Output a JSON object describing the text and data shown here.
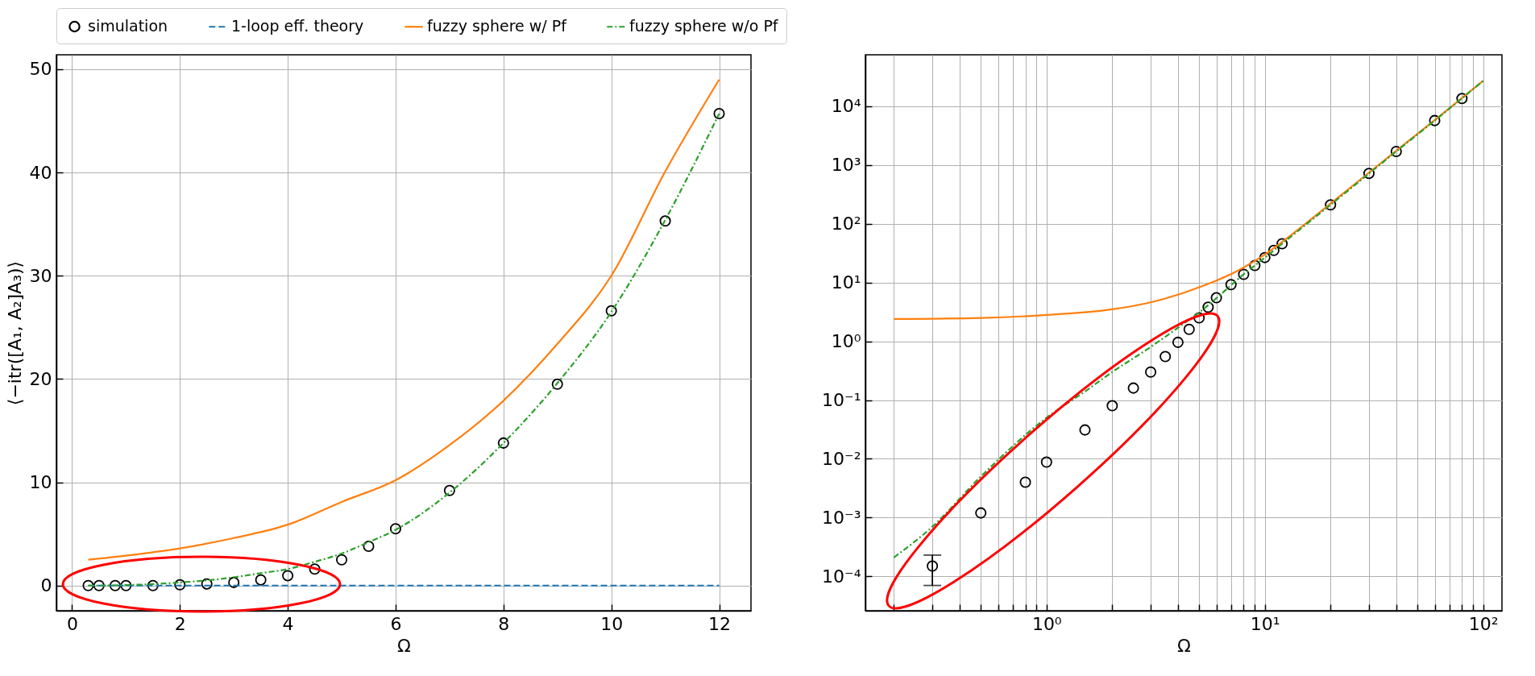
{
  "chart_data": [
    {
      "type": "line",
      "xlabel": "Ω",
      "ylabel": "⟨−itr([A₁, A₂]A₃)⟩",
      "xlim": [
        -0.29,
        12.59
      ],
      "ylim": [
        -2.44,
        51.4
      ],
      "xticks": [
        0,
        2,
        4,
        6,
        8,
        10,
        12
      ],
      "yticks": [
        0,
        10,
        20,
        30,
        40,
        50
      ],
      "grid": true,
      "legend": "top",
      "series": [
        {
          "name": "simulation",
          "type": "scatter",
          "color": "#000000",
          "marker": "circle",
          "x": [
            0.3,
            0.5,
            0.8,
            1,
            1.5,
            2,
            2.5,
            3,
            3.5,
            4,
            4.5,
            5,
            5.5,
            6,
            7,
            8,
            9,
            10,
            11,
            12
          ],
          "values": [
            0,
            0,
            0,
            0,
            0,
            0.08,
            0.16,
            0.3,
            0.55,
            0.96,
            1.6,
            2.5,
            3.8,
            5.5,
            9.2,
            13.8,
            19.5,
            26.6,
            35.3,
            45.7
          ]
        },
        {
          "name": "1-loop eff. theory",
          "color": "#1f77b4",
          "line_style": "dashed",
          "x": [
            0.3,
            12
          ],
          "values": [
            0,
            0
          ]
        },
        {
          "name": "fuzzy sphere w/ Pf",
          "color": "#ff7f0e",
          "line_style": "solid",
          "x": [
            0.3,
            1,
            2,
            3,
            4,
            5,
            6,
            7,
            8,
            9,
            10,
            11,
            12
          ],
          "values": [
            2.5,
            2.9,
            3.6,
            4.6,
            5.9,
            8.1,
            10.2,
            13.6,
            17.9,
            23.4,
            30,
            40.1,
            49
          ]
        },
        {
          "name": "fuzzy sphere w/o Pf",
          "color": "#2ca02c",
          "line_style": "dashdot",
          "x": [
            0.3,
            0.5,
            1,
            1.5,
            2,
            2.5,
            3,
            3.5,
            4,
            4.5,
            5,
            5.5,
            6,
            7,
            8,
            9,
            10,
            11,
            12
          ],
          "values": [
            0,
            0,
            0.05,
            0.14,
            0.3,
            0.5,
            0.8,
            1.2,
            1.6,
            2.3,
            3.1,
            4.2,
            5.4,
            9,
            13.8,
            19.6,
            26.5,
            35.4,
            45.7
          ]
        }
      ]
    },
    {
      "type": "line",
      "xlabel": "Ω",
      "log": "xy",
      "xlim": [
        0.148,
        122
      ],
      "ylim": [
        2.6e-05,
        75000
      ],
      "xticks": [
        {
          "value": 0.2,
          "label": null
        },
        {
          "value": 0.3,
          "label": null
        },
        {
          "value": 0.4,
          "label": null
        },
        {
          "value": 0.5,
          "label": null
        },
        {
          "value": 0.6,
          "label": null
        },
        {
          "value": 0.7,
          "label": null
        },
        {
          "value": 0.8,
          "label": null
        },
        {
          "value": 0.9,
          "label": null
        },
        {
          "value": 1,
          "label": "10⁰"
        },
        {
          "value": 2,
          "label": null
        },
        {
          "value": 3,
          "label": null
        },
        {
          "value": 4,
          "label": null
        },
        {
          "value": 5,
          "label": null
        },
        {
          "value": 6,
          "label": null
        },
        {
          "value": 7,
          "label": null
        },
        {
          "value": 8,
          "label": null
        },
        {
          "value": 9,
          "label": null
        },
        {
          "value": 10,
          "label": "10¹"
        },
        {
          "value": 20,
          "label": null
        },
        {
          "value": 30,
          "label": null
        },
        {
          "value": 40,
          "label": null
        },
        {
          "value": 50,
          "label": null
        },
        {
          "value": 60,
          "label": null
        },
        {
          "value": 70,
          "label": null
        },
        {
          "value": 80,
          "label": null
        },
        {
          "value": 90,
          "label": null
        },
        {
          "value": 100,
          "label": "10²"
        }
      ],
      "yticks": [
        {
          "value": 0.0001,
          "label": "10⁻⁴"
        },
        {
          "value": 0.001,
          "label": "10⁻³"
        },
        {
          "value": 0.01,
          "label": "10⁻²"
        },
        {
          "value": 0.1,
          "label": "10⁻¹"
        },
        {
          "value": 1,
          "label": "10⁰"
        },
        {
          "value": 10,
          "label": "10¹"
        },
        {
          "value": 100,
          "label": "10²"
        },
        {
          "value": 1000,
          "label": "10³"
        },
        {
          "value": 10000,
          "label": "10⁴"
        }
      ],
      "grid": true,
      "series": [
        {
          "type": "scatter",
          "color": "#000000",
          "marker": "circle",
          "x": [
            0.3,
            0.5,
            0.8,
            1,
            1.5,
            2,
            2.5,
            3,
            3.5,
            4,
            4.5,
            5,
            5.5,
            6,
            7,
            8,
            9,
            10,
            11,
            12,
            20,
            30,
            40,
            60,
            80
          ],
          "values": [
            0.00015,
            0.0012,
            0.004,
            0.0088,
            0.031,
            0.08,
            0.16,
            0.3,
            0.55,
            0.96,
            1.6,
            2.5,
            3.8,
            5.5,
            9.2,
            13.8,
            19.5,
            26.6,
            35.3,
            45.7,
            210,
            720,
            1700,
            5700,
            13500
          ],
          "errors": [
            [
              7e-05,
              0.00023
            ],
            null,
            null,
            null,
            null,
            null,
            null,
            null,
            null,
            null,
            null,
            null,
            null,
            null,
            null,
            null,
            null,
            null,
            null,
            null,
            null,
            null,
            null,
            null,
            null
          ]
        },
        {
          "color": "#ff7f0e",
          "line_style": "solid",
          "x": [
            0.2,
            0.5,
            1,
            2,
            3,
            4,
            5,
            6,
            7,
            8,
            10,
            12,
            20,
            40,
            60,
            100
          ],
          "values": [
            2.4,
            2.5,
            2.8,
            3.5,
            4.6,
            6.2,
            8.3,
            10.8,
            13.9,
            18,
            30,
            49,
            220,
            1750,
            5800,
            27000
          ]
        },
        {
          "color": "#2ca02c",
          "line_style": "dashdot",
          "x": [
            0.2,
            0.3,
            0.5,
            1,
            1.5,
            2,
            3,
            4,
            5,
            6,
            7,
            8,
            10,
            12,
            20,
            40,
            60,
            100
          ],
          "values": [
            0.00021,
            0.0007,
            0.005,
            0.05,
            0.14,
            0.3,
            0.8,
            1.7,
            3.1,
            5.4,
            9,
            13.8,
            26.5,
            45.7,
            210,
            1700,
            5700,
            27000
          ]
        }
      ]
    }
  ]
}
